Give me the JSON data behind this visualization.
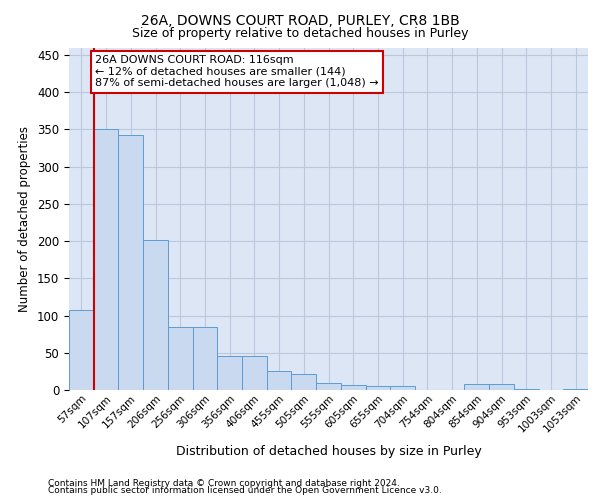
{
  "title1": "26A, DOWNS COURT ROAD, PURLEY, CR8 1BB",
  "title2": "Size of property relative to detached houses in Purley",
  "xlabel": "Distribution of detached houses by size in Purley",
  "ylabel": "Number of detached properties",
  "bin_labels": [
    "57sqm",
    "107sqm",
    "157sqm",
    "206sqm",
    "256sqm",
    "306sqm",
    "356sqm",
    "406sqm",
    "455sqm",
    "505sqm",
    "555sqm",
    "605sqm",
    "655sqm",
    "704sqm",
    "754sqm",
    "804sqm",
    "854sqm",
    "904sqm",
    "953sqm",
    "1003sqm",
    "1053sqm"
  ],
  "bar_heights": [
    108,
    350,
    343,
    202,
    85,
    85,
    46,
    46,
    25,
    21,
    10,
    7,
    6,
    6,
    0,
    0,
    8,
    8,
    2,
    0,
    2
  ],
  "bar_color": "#c9d9f0",
  "bar_edge_color": "#5b9bd5",
  "grid_color": "#b8c8de",
  "bg_color": "#dce6f5",
  "property_line_color": "#cc0000",
  "annotation_line1": "26A DOWNS COURT ROAD: 116sqm",
  "annotation_line2": "← 12% of detached houses are smaller (144)",
  "annotation_line3": "87% of semi-detached houses are larger (1,048) →",
  "annotation_box_edgecolor": "#cc0000",
  "ylim": [
    0,
    460
  ],
  "yticks": [
    0,
    50,
    100,
    150,
    200,
    250,
    300,
    350,
    400,
    450
  ],
  "footer1": "Contains HM Land Registry data © Crown copyright and database right 2024.",
  "footer2": "Contains public sector information licensed under the Open Government Licence v3.0."
}
